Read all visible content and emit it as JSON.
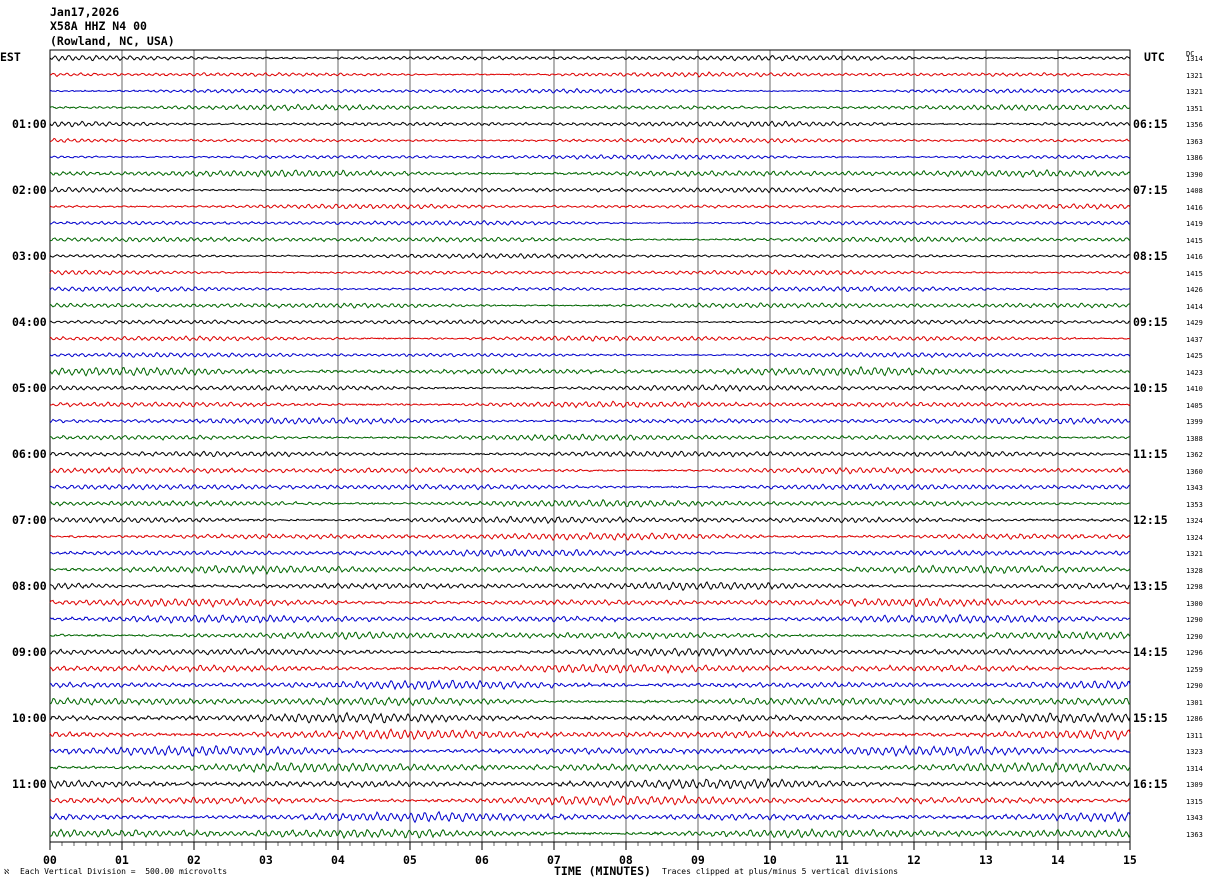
{
  "header": {
    "date": "Jan17,2026",
    "station": "X58A HHZ N4 00",
    "location": "(Rowland, NC, USA)"
  },
  "left_title": "EST",
  "right_title": "UTC",
  "dc_title": "DC",
  "footer": {
    "scale_note": "Each Vertical Division =  500.00 microvolts",
    "xlabel": "TIME (MINUTES)",
    "clip_note": "Traces clipped at plus/minus 5 vertical divisions",
    "corner_mark": "ℵ"
  },
  "colors": {
    "trace_cycle": [
      "#000000",
      "#dd0000",
      "#0000cc",
      "#006600"
    ],
    "grid": "#000000"
  },
  "chart_data": {
    "type": "line",
    "title": "",
    "xlabel": "TIME (MINUTES)",
    "ylabel": "",
    "xlim": [
      0,
      15
    ],
    "x_ticks": [
      "00",
      "01",
      "02",
      "03",
      "04",
      "05",
      "06",
      "07",
      "08",
      "09",
      "10",
      "11",
      "12",
      "13",
      "14",
      "15"
    ],
    "rows_per_hour": 4,
    "row_count": 48,
    "est_hour_labels": [
      "01:00",
      "02:00",
      "03:00",
      "04:00",
      "05:00",
      "06:00",
      "07:00",
      "08:00",
      "09:00",
      "10:00",
      "11:00"
    ],
    "utc_hour_labels": [
      "06:15",
      "07:15",
      "08:15",
      "09:15",
      "10:15",
      "11:15",
      "12:15",
      "13:15",
      "14:15",
      "15:15",
      "16:15"
    ],
    "hour_label_rows": [
      4,
      8,
      12,
      16,
      20,
      24,
      28,
      32,
      36,
      40,
      44
    ],
    "dc_offsets": [
      1314,
      1321,
      1321,
      1351,
      1356,
      1363,
      1386,
      1390,
      1408,
      1416,
      1419,
      1415,
      1416,
      1415,
      1426,
      1414,
      1429,
      1437,
      1425,
      1423,
      1410,
      1405,
      1399,
      1388,
      1362,
      1360,
      1343,
      1353,
      1324,
      1324,
      1321,
      1328,
      1298,
      1300,
      1290,
      1290,
      1296,
      1259,
      1290,
      1301,
      1286,
      1311,
      1323,
      1314,
      1309,
      1315,
      1343,
      1363
    ],
    "trace_amplitude_divisions": [
      0.7,
      0.6,
      0.6,
      0.7,
      0.7,
      0.6,
      0.6,
      0.9,
      0.7,
      0.6,
      0.6,
      0.7,
      0.6,
      0.6,
      0.6,
      0.7,
      0.6,
      0.7,
      0.6,
      1.0,
      0.8,
      0.8,
      0.8,
      0.8,
      0.8,
      0.8,
      0.8,
      0.9,
      0.9,
      0.9,
      0.9,
      1.0,
      1.0,
      1.0,
      1.0,
      1.0,
      1.0,
      1.1,
      1.1,
      1.1,
      1.2,
      1.2,
      1.2,
      1.2,
      1.2,
      1.2,
      1.2,
      1.2
    ]
  }
}
